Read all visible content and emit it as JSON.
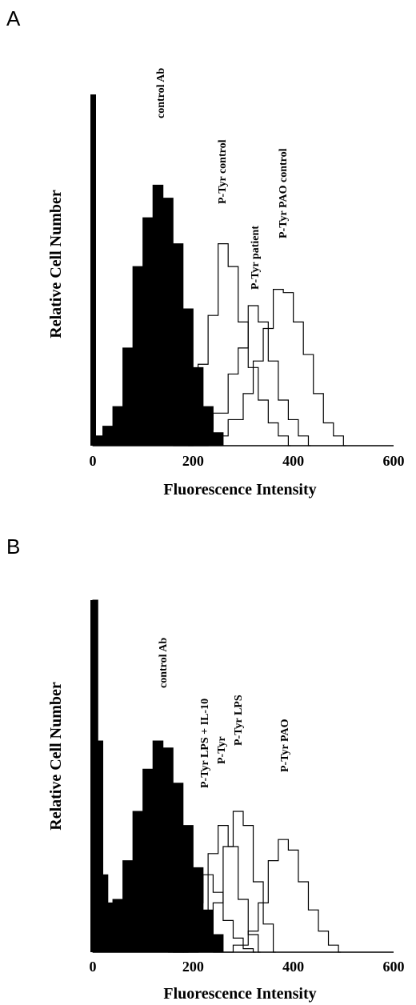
{
  "chart_data": [
    {
      "panel": "A",
      "type": "area",
      "xlabel": "Fluorescence Intensity",
      "ylabel": "Relative Cell Number",
      "xlim": [
        0,
        600
      ],
      "ylim": [
        0,
        100
      ],
      "xticks": [
        0,
        200,
        400,
        600
      ],
      "grid": false,
      "legend": "none",
      "series": [
        {
          "name": "control Ab",
          "style": "filled",
          "x": [
            0,
            20,
            40,
            60,
            80,
            100,
            120,
            140,
            160,
            180,
            200,
            220,
            240,
            260
          ],
          "y": [
            3,
            6,
            12,
            30,
            55,
            70,
            80,
            76,
            62,
            42,
            24,
            12,
            4,
            0
          ]
        },
        {
          "name": "P-Tyr control",
          "style": "outline",
          "x": [
            160,
            190,
            210,
            230,
            250,
            270,
            290,
            310,
            330,
            350,
            370,
            390
          ],
          "y": [
            1,
            8,
            25,
            40,
            62,
            55,
            38,
            24,
            14,
            7,
            3,
            0
          ]
        },
        {
          "name": "P-Tyr patient",
          "style": "outline",
          "x": [
            160,
            200,
            240,
            270,
            290,
            310,
            330,
            350,
            370,
            390,
            410,
            430
          ],
          "y": [
            0,
            5,
            10,
            22,
            30,
            43,
            38,
            26,
            14,
            8,
            3,
            0
          ]
        },
        {
          "name": "P-Tyr PAO control",
          "style": "outline",
          "x": [
            190,
            230,
            270,
            300,
            320,
            340,
            360,
            380,
            400,
            420,
            440,
            460,
            480,
            500
          ],
          "y": [
            0,
            3,
            8,
            16,
            26,
            36,
            48,
            47,
            38,
            28,
            16,
            7,
            3,
            0
          ]
        }
      ]
    },
    {
      "panel": "B",
      "type": "area",
      "xlabel": "Fluorescence Intensity",
      "ylabel": "Relative Cell Number",
      "xlim": [
        0,
        600
      ],
      "ylim": [
        0,
        100
      ],
      "xticks": [
        0,
        200,
        400,
        600
      ],
      "grid": false,
      "legend": "none",
      "series": [
        {
          "name": "control Ab",
          "style": "filled",
          "x": [
            0,
            10,
            20,
            30,
            40,
            60,
            80,
            100,
            120,
            140,
            160,
            180,
            200,
            220,
            240,
            260
          ],
          "y": [
            100,
            60,
            22,
            14,
            15,
            26,
            40,
            52,
            60,
            58,
            48,
            36,
            24,
            12,
            5,
            0
          ]
        },
        {
          "name": "P-Tyr LPS + IL-10",
          "style": "outline",
          "x": [
            150,
            180,
            200,
            220,
            240,
            260,
            280,
            300,
            320
          ],
          "y": [
            0,
            3,
            14,
            22,
            17,
            9,
            4,
            1,
            0
          ]
        },
        {
          "name": "P-Tyr",
          "style": "outline",
          "x": [
            160,
            190,
            210,
            230,
            250,
            270,
            290,
            310,
            330
          ],
          "y": [
            0,
            3,
            10,
            28,
            36,
            30,
            15,
            5,
            0
          ]
        },
        {
          "name": "P-Tyr LPS",
          "style": "outline",
          "x": [
            180,
            210,
            240,
            260,
            280,
            300,
            320,
            340,
            360
          ],
          "y": [
            0,
            4,
            14,
            30,
            40,
            36,
            20,
            8,
            0
          ]
        },
        {
          "name": "P-Tyr PAO",
          "style": "outline",
          "x": [
            240,
            280,
            310,
            330,
            350,
            370,
            390,
            410,
            430,
            450,
            470,
            490
          ],
          "y": [
            0,
            2,
            6,
            14,
            26,
            32,
            29,
            20,
            12,
            6,
            2,
            0
          ]
        }
      ]
    }
  ]
}
